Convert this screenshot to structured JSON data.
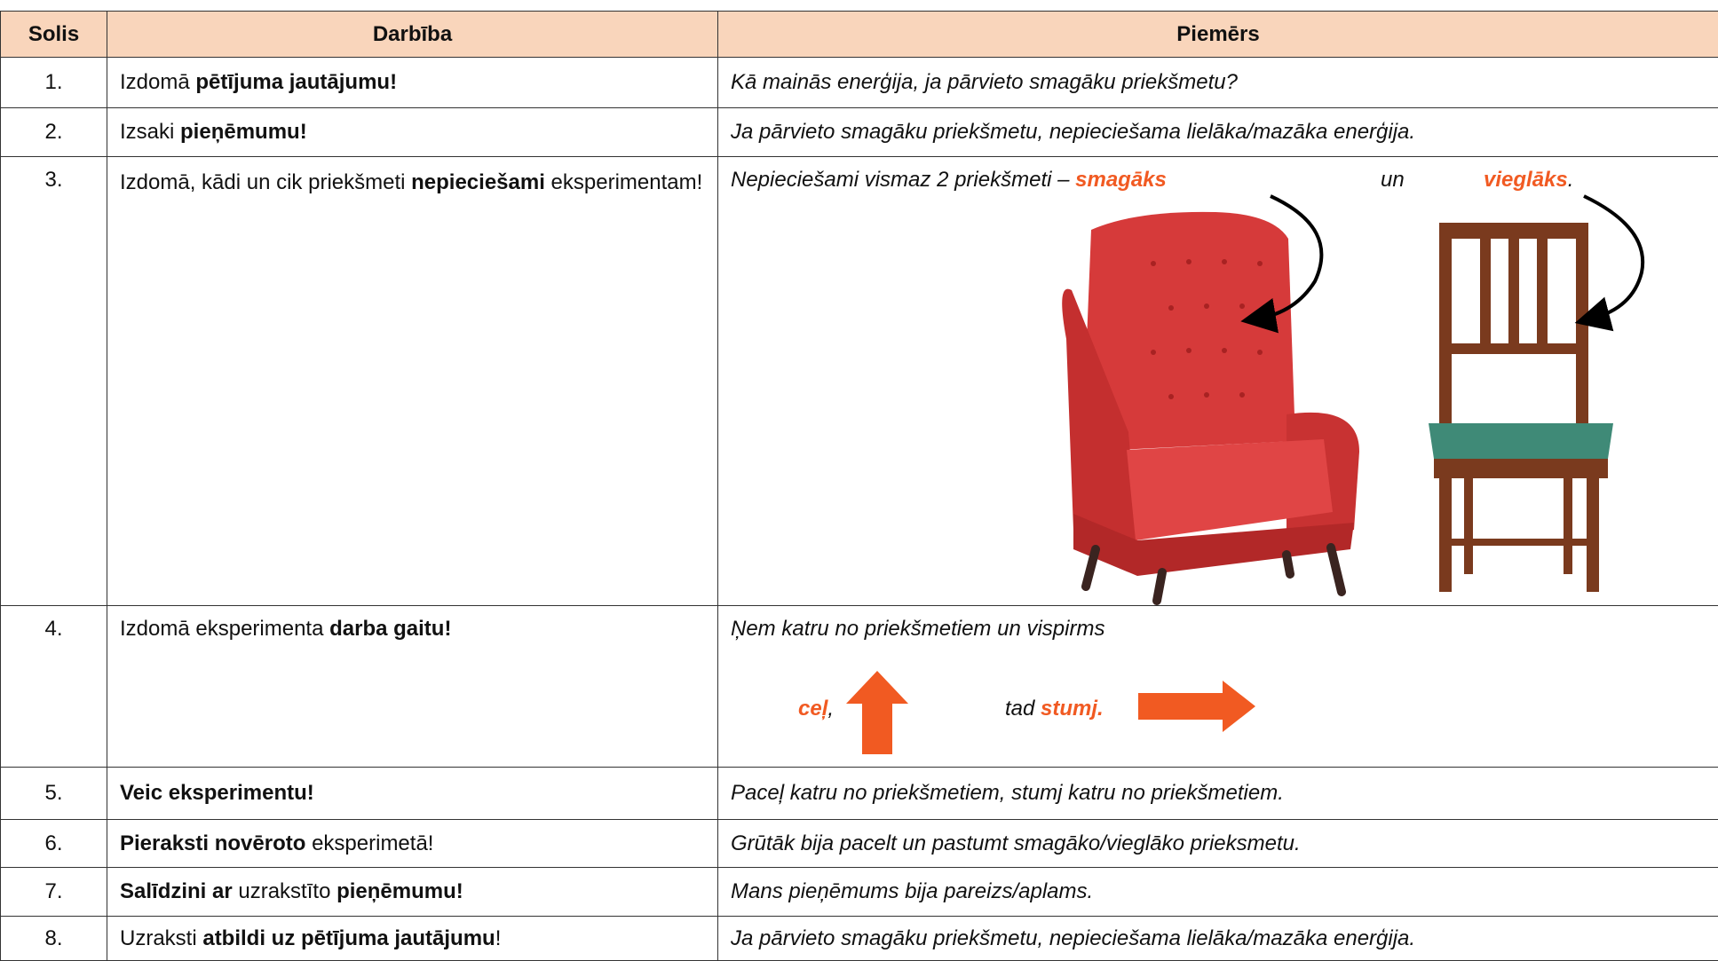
{
  "header": {
    "step": "Solis",
    "action": "Darbība",
    "example": "Piemērs"
  },
  "rows": [
    {
      "step": "1.",
      "action": [
        "Izdomā ",
        "pētījuma jautājumu!"
      ],
      "example": [
        "Kā mainās enerģija, ja pārvieto smagāku priekšmetu?"
      ]
    },
    {
      "step": "2.",
      "action": [
        "Izsaki ",
        "pieņēmumu!"
      ],
      "example": [
        "Ja pārvieto smagāku priekšmetu, nepieciešama lielāka/mazāka enerģija."
      ]
    },
    {
      "step": "3.",
      "action": [
        "Izdomā, kādi un cik priekšmeti ",
        "nepieciešami",
        " eksperimentam!"
      ],
      "example": [
        "Nepieciešami vismaz 2 priekšmeti – ",
        "smagāks",
        "un",
        "vieglāks",
        "."
      ]
    },
    {
      "step": "4.",
      "action": [
        "Izdomā eksperimenta ",
        "darba gaitu!"
      ],
      "example": [
        "Ņem katru no priekšmetiem un vispirms",
        "ceļ",
        ",",
        "tad ",
        "stumj."
      ]
    },
    {
      "step": "5.",
      "action": [
        "Veic eksperimentu!"
      ],
      "example": [
        "Paceļ katru no priekšmetiem, stumj katru no priekšmetiem."
      ]
    },
    {
      "step": "6.",
      "action": [
        "Pieraksti novēroto",
        " eksperimetā!"
      ],
      "example": [
        "Grūtāk bija pacelt un pastumt smagāko/vieglāko prieksmetu."
      ]
    },
    {
      "step": "7.",
      "action": [
        "Salīdzini ar",
        " uzrakstīto ",
        "pieņēmumu!"
      ],
      "example": [
        "Mans pieņēmums bija pareizs/aplams."
      ]
    },
    {
      "step": "8.",
      "action": [
        "Uzraksti ",
        "atbildi uz pētījuma jautājumu",
        "!"
      ],
      "example": [
        "Ja pārvieto smagāku priekšmetu, nepieciešama lielāka/mazāka enerģija."
      ]
    }
  ]
}
